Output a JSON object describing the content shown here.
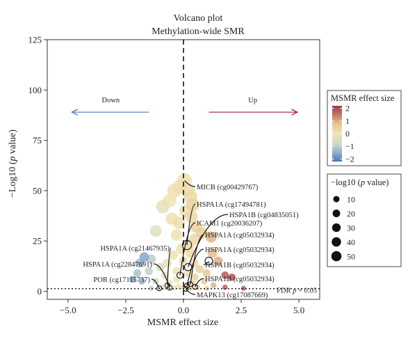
{
  "chart_data": {
    "type": "scatter",
    "title": "Volcano plot",
    "subtitle": "Methylation-wide SMR",
    "xlabel": "MSMR effect size",
    "ylabel_prefix": "−Log10 (",
    "ylabel_italic": "p",
    "ylabel_suffix": " value)",
    "xlim": [
      -5.9,
      5.9
    ],
    "ylim": [
      -4,
      125
    ],
    "xticks": [
      -5.0,
      -2.5,
      0.0,
      2.5,
      5.0
    ],
    "xtick_labels": [
      "−5.0",
      "−2.5",
      "0.0",
      "2.5",
      "5.0"
    ],
    "yticks": [
      0,
      25,
      50,
      75,
      100,
      125
    ],
    "ytick_labels": [
      "0",
      "25",
      "50",
      "75",
      "100",
      "125"
    ],
    "vline_x": 0,
    "fdr_threshold_y": 1.3,
    "fdr_label_prefix": "FDR ",
    "fdr_label_italic": "p",
    "fdr_label_suffix": " = 0.05",
    "arrows": {
      "down": {
        "label": "Down",
        "color": "#5b84bf",
        "x_from": -1.5,
        "x_to": -4.8,
        "y": 89
      },
      "up": {
        "label": "Up",
        "color": "#a3344c",
        "x_from": 1.1,
        "x_to": 4.9,
        "y": 89
      }
    },
    "points": [
      {
        "x": 0.05,
        "y": 55,
        "effect": 0.1
      },
      {
        "x": -0.15,
        "y": 52,
        "effect": 0.1
      },
      {
        "x": 0.2,
        "y": 50,
        "effect": 0.2
      },
      {
        "x": -0.4,
        "y": 50,
        "effect": 0.05
      },
      {
        "x": 0.3,
        "y": 47,
        "effect": 0.25
      },
      {
        "x": -0.6,
        "y": 45,
        "effect": 0.0
      },
      {
        "x": 0.4,
        "y": 43,
        "effect": 0.45
      },
      {
        "x": -0.9,
        "y": 42,
        "effect": -0.3
      },
      {
        "x": 0.1,
        "y": 40,
        "effect": 0.2
      },
      {
        "x": 0.35,
        "y": 37,
        "effect": 0.3
      },
      {
        "x": -0.5,
        "y": 36,
        "effect": 0.05
      },
      {
        "x": -0.2,
        "y": 34,
        "effect": 0.15
      },
      {
        "x": 0.55,
        "y": 32,
        "effect": 0.5
      },
      {
        "x": -1.2,
        "y": 30,
        "effect": -0.4
      },
      {
        "x": 0.8,
        "y": 29,
        "effect": 0.6
      },
      {
        "x": -0.3,
        "y": 28,
        "effect": 0.1
      },
      {
        "x": 0.5,
        "y": 26,
        "effect": 0.35
      },
      {
        "x": 1.2,
        "y": 27,
        "effect": 0.9
      },
      {
        "x": 0.25,
        "y": 23,
        "effect": 0.2
      },
      {
        "x": -0.1,
        "y": 21,
        "effect": 0.1
      },
      {
        "x": 0.3,
        "y": 19,
        "effect": 0.25
      },
      {
        "x": -0.45,
        "y": 18,
        "effect": 0.0
      },
      {
        "x": 1.25,
        "y": 19,
        "effect": 0.8
      },
      {
        "x": 0.0,
        "y": 15,
        "effect": 0.15
      },
      {
        "x": -0.7,
        "y": 14,
        "effect": -0.2
      },
      {
        "x": 0.45,
        "y": 14,
        "effect": 0.35
      },
      {
        "x": -1.7,
        "y": 17,
        "effect": -1.6
      },
      {
        "x": -1.9,
        "y": 14,
        "effect": -1.3
      },
      {
        "x": -1.4,
        "y": 16,
        "effect": -1.0
      },
      {
        "x": 1.5,
        "y": 15,
        "effect": 1.0
      },
      {
        "x": -1.0,
        "y": 12,
        "effect": -0.6
      },
      {
        "x": 0.7,
        "y": 11,
        "effect": 0.5
      },
      {
        "x": -0.3,
        "y": 10,
        "effect": 0.05
      },
      {
        "x": 0.15,
        "y": 9,
        "effect": 0.1
      },
      {
        "x": -2.0,
        "y": 9,
        "effect": -1.2
      },
      {
        "x": -1.5,
        "y": 10,
        "effect": -0.9
      },
      {
        "x": 1.0,
        "y": 9,
        "effect": 0.7
      },
      {
        "x": -0.8,
        "y": 8,
        "effect": -0.3
      },
      {
        "x": 0.5,
        "y": 7,
        "effect": 0.4
      },
      {
        "x": -2.2,
        "y": 6,
        "effect": -1.6
      },
      {
        "x": -0.3,
        "y": 6,
        "effect": 0.0
      },
      {
        "x": 2.1,
        "y": 7,
        "effect": 1.9
      },
      {
        "x": 1.8,
        "y": 8,
        "effect": 1.8
      },
      {
        "x": -1.8,
        "y": 5,
        "effect": -1.4
      },
      {
        "x": -1.2,
        "y": 5,
        "effect": -0.8
      },
      {
        "x": 0.9,
        "y": 5,
        "effect": 0.6
      },
      {
        "x": 0.4,
        "y": 4,
        "effect": 0.3
      },
      {
        "x": -0.6,
        "y": 4,
        "effect": -0.2
      },
      {
        "x": 1.3,
        "y": 3,
        "effect": 0.9
      },
      {
        "x": 0.2,
        "y": 3,
        "effect": 0.15
      },
      {
        "x": -0.2,
        "y": 2.5,
        "effect": 0.0
      },
      {
        "x": 0.6,
        "y": 2,
        "effect": 0.45
      },
      {
        "x": -0.9,
        "y": 2,
        "effect": -0.5
      },
      {
        "x": 1.8,
        "y": 2,
        "effect": 1.7
      },
      {
        "x": 0.0,
        "y": 1.8,
        "effect": 0.1
      },
      {
        "x": -0.4,
        "y": 1.6,
        "effect": -0.1
      },
      {
        "x": 0.3,
        "y": 1.5,
        "effect": 0.2
      },
      {
        "x": 1.0,
        "y": 1.4,
        "effect": 0.7
      },
      {
        "x": -1.4,
        "y": 1.5,
        "effect": -1.0
      },
      {
        "x": 2.6,
        "y": 1.5,
        "effect": 1.8
      }
    ],
    "highlights": [
      {
        "label": "MICB (cg00429767)",
        "x": 0.05,
        "y": 55,
        "circled": false
      },
      {
        "label": "HSPA1A (cg17494781)",
        "x": 0.15,
        "y": 23,
        "circled": true
      },
      {
        "label": "HSPA1B (cg04835051)",
        "x": 0.2,
        "y": 12,
        "circled": true
      },
      {
        "label": "ICAM1 (cg20036207)",
        "x": -0.15,
        "y": 8,
        "circled": true
      },
      {
        "label": "HSPA1A (cg05032934)",
        "x": 0.3,
        "y": 3.5,
        "circled": true
      },
      {
        "label": "HSPA1A (cg05032934)",
        "x": 0.15,
        "y": 2.8,
        "circled": true
      },
      {
        "label": "HSPA1B (cg05032934)",
        "x": 1.1,
        "y": 15,
        "circled": true
      },
      {
        "label": "HSPA1B (cg05032934)",
        "x": 0.5,
        "y": 2.2,
        "circled": true
      },
      {
        "label": "HSPA1A (cg21467935)",
        "x": -0.7,
        "y": 3,
        "circled": true
      },
      {
        "label": "HSPA1A (cg22847691)",
        "x": -0.6,
        "y": 1.8,
        "circled": true
      },
      {
        "label": "POR (cg17115737)",
        "x": -1.05,
        "y": 1.5,
        "circled": true
      },
      {
        "label": "MAPK13 (cg17087669)",
        "x": 0.1,
        "y": 1.2,
        "circled": true
      }
    ],
    "color_legend": {
      "title": "MSMR effect size",
      "range": [
        -2.2,
        2.2
      ],
      "ticks": [
        2,
        1,
        0,
        -1,
        -2
      ],
      "tick_labels": [
        "2",
        "1",
        "0",
        "−1",
        "−2"
      ],
      "colors": [
        "#4b73b6",
        "#93b3cc",
        "#d4dbc3",
        "#efe3b3",
        "#e7c894",
        "#c57a6c",
        "#a3344c"
      ]
    },
    "size_legend": {
      "title_prefix": "−log10 (",
      "title_italic": "p",
      "title_suffix": " value)",
      "values": [
        10,
        20,
        30,
        40,
        50
      ],
      "value_labels": [
        "10",
        "20",
        "30",
        "40",
        "50"
      ]
    }
  }
}
